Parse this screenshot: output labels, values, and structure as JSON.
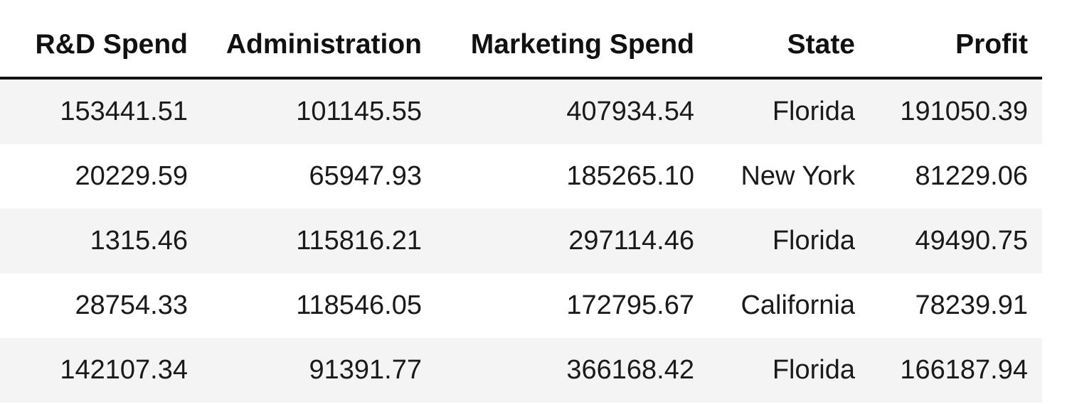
{
  "table": {
    "columns": [
      "R&D Spend",
      "Administration",
      "Marketing Spend",
      "State",
      "Profit"
    ],
    "rows": [
      [
        "153441.51",
        "101145.55",
        "407934.54",
        "Florida",
        "191050.39"
      ],
      [
        "20229.59",
        "65947.93",
        "185265.10",
        "New York",
        "81229.06"
      ],
      [
        "1315.46",
        "115816.21",
        "297114.46",
        "Florida",
        "49490.75"
      ],
      [
        "28754.33",
        "118546.05",
        "172795.67",
        "California",
        "78239.91"
      ],
      [
        "142107.34",
        "91391.77",
        "366168.42",
        "Florida",
        "166187.94"
      ]
    ]
  },
  "colors": {
    "striped_row_background": "#f4f4f4",
    "header_rule": "#111111"
  }
}
